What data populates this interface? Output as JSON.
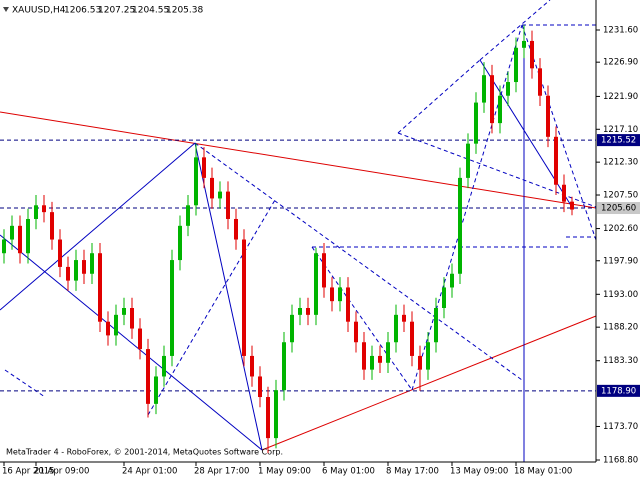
{
  "chart_data": {
    "type": "candlestick",
    "title": "XAUUSD,H4",
    "footer": "MetaTrader 4 - RoboForex, © 2001-2014, MetaQuotes Software Corp.",
    "up_color": "#00b400",
    "down_color": "#e00000",
    "categories": [
      "16 Apr 2015",
      null,
      null,
      null,
      "21 Apr 09:00",
      null,
      null,
      null,
      null,
      null,
      null,
      null,
      null,
      null,
      null,
      "24 Apr 01:00",
      null,
      null,
      null,
      null,
      null,
      null,
      null,
      null,
      "28 Apr 17:00",
      null,
      null,
      null,
      null,
      null,
      null,
      null,
      "1 May 09:00",
      null,
      null,
      null,
      null,
      null,
      null,
      null,
      "6 May 01:00",
      null,
      null,
      null,
      null,
      null,
      null,
      null,
      "8 May 17:00",
      null,
      null,
      null,
      null,
      null,
      null,
      null,
      "13 May 09:00",
      null,
      null,
      null,
      null,
      null,
      null,
      null,
      "18 May 01:00",
      null,
      null,
      null,
      null,
      null,
      null,
      null
    ],
    "open": [
      1199,
      1201,
      1203,
      1199,
      1204,
      1206,
      1205,
      1201,
      1197,
      1195,
      1198,
      1196,
      1199,
      1189,
      1187,
      1190,
      1191,
      1188,
      1185,
      1177,
      1181,
      1184,
      1198,
      1203,
      1206,
      1213,
      1210,
      1207,
      1208,
      1204,
      1201,
      1184,
      1181,
      1178,
      1172,
      1179,
      1186,
      1190,
      1191,
      1190,
      1199,
      1194,
      1192,
      1194,
      1189,
      1186,
      1182,
      1184,
      1183,
      1186,
      1190,
      1189,
      1184,
      1182,
      1186,
      1191,
      1194,
      1196,
      1210,
      1215,
      1221,
      1225,
      1218,
      1222,
      1224,
      1229,
      1230,
      1226,
      1222,
      1216,
      1209,
      1206.53
    ],
    "high": [
      1202.5,
      1204.5,
      1204.5,
      1205.5,
      1207.5,
      1207.5,
      1206.5,
      1202.5,
      1198.5,
      1199.5,
      1199.5,
      1200.5,
      1200.5,
      1190.5,
      1191.5,
      1192.5,
      1192.5,
      1189.5,
      1186.5,
      1182.5,
      1185.5,
      1199.5,
      1204.5,
      1207.5,
      1215,
      1214.5,
      1211.5,
      1209.5,
      1209.5,
      1205.5,
      1202.5,
      1185.5,
      1182.5,
      1179.5,
      1180.5,
      1187.5,
      1191.5,
      1192.5,
      1192.5,
      1199.8,
      1200.5,
      1195.5,
      1195.5,
      1195.5,
      1190.5,
      1187.5,
      1185.5,
      1185.5,
      1187.5,
      1191.5,
      1191.5,
      1190.5,
      1185.5,
      1187.5,
      1192.5,
      1195.5,
      1197.5,
      1211.5,
      1216.5,
      1222.5,
      1226.9,
      1226.5,
      1223.5,
      1225.5,
      1230.5,
      1232.3,
      1231.5,
      1227.5,
      1223.5,
      1217.5,
      1210.5,
      1207.25
    ],
    "low": [
      1197.5,
      1199.5,
      1197.5,
      1197.5,
      1202.5,
      1203.5,
      1199.5,
      1195.5,
      1193.5,
      1193.5,
      1194.5,
      1194.5,
      1187.5,
      1185.5,
      1185.5,
      1188.5,
      1186.5,
      1183.5,
      1175,
      1175.5,
      1179.5,
      1182.5,
      1196.5,
      1201.5,
      1204.5,
      1208.5,
      1205.5,
      1205.5,
      1202.5,
      1199.5,
      1182.5,
      1179.5,
      1176.5,
      1169.8,
      1170.5,
      1177.5,
      1184.5,
      1188.5,
      1188.5,
      1188.5,
      1192.5,
      1190.5,
      1190.5,
      1187.5,
      1184.5,
      1180.5,
      1180.5,
      1181.5,
      1181.5,
      1184.5,
      1187.5,
      1182.5,
      1178.9,
      1180.5,
      1184.5,
      1189.5,
      1192.5,
      1194.5,
      1208.5,
      1213.5,
      1219.5,
      1216.5,
      1216.5,
      1220.5,
      1222.5,
      1227.5,
      1224.5,
      1220.5,
      1214.5,
      1207.5,
      1205,
      1204.55
    ],
    "close": [
      1201,
      1203,
      1199,
      1204,
      1206,
      1205,
      1201,
      1197,
      1195,
      1198,
      1196,
      1199,
      1189,
      1187,
      1190,
      1191,
      1188,
      1185,
      1177,
      1181,
      1184,
      1198,
      1203,
      1206,
      1213,
      1210,
      1207,
      1208,
      1204,
      1201,
      1184,
      1181,
      1178,
      1172,
      1179,
      1186,
      1190,
      1191,
      1190,
      1199,
      1194,
      1192,
      1194,
      1189,
      1186,
      1182,
      1184,
      1183,
      1186,
      1190,
      1189,
      1184,
      1182,
      1186,
      1191,
      1194,
      1196,
      1210,
      1215,
      1221,
      1225,
      1218,
      1222,
      1224,
      1229,
      1230,
      1226,
      1222,
      1216,
      1209,
      1206.53,
      1205.38
    ],
    "ylim": [
      1168.51,
      1235.98
    ],
    "yticks": [
      {
        "value": 1231.6,
        "label": "1231.60"
      },
      {
        "value": 1226.9,
        "label": "1226.90"
      },
      {
        "value": 1221.9,
        "label": "1221.90"
      },
      {
        "value": 1217.1,
        "label": "1217.10"
      },
      {
        "value": 1212.3,
        "label": "1212.30"
      },
      {
        "value": 1207.5,
        "label": "1207.50"
      },
      {
        "value": 1202.6,
        "label": "1202.60"
      },
      {
        "value": 1197.9,
        "label": "1197.90"
      },
      {
        "value": 1193,
        "label": "1193.00"
      },
      {
        "value": 1188.2,
        "label": "1188.20"
      },
      {
        "value": 1183.3,
        "label": "1183.30"
      },
      {
        "value": 1173.7,
        "label": "1173.70"
      },
      {
        "value": 1168.8,
        "label": "1168.80"
      }
    ],
    "hlines": [
      1215.52,
      {
        "value": 1205.6,
        "label": "1205.60"
      },
      {
        "value": 1178.9,
        "label": "1178.90"
      }
    ]
  }
}
